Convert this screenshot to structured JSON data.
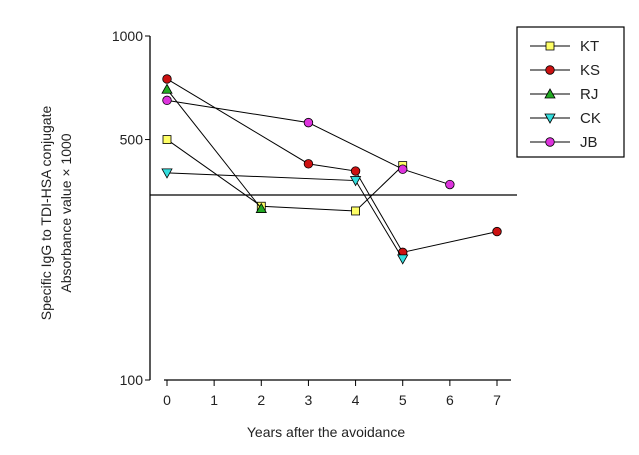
{
  "chart_data": {
    "type": "line",
    "title": "",
    "xlabel": "Years after the avoidance",
    "ylabel": "Specific IgG to TDI-HSA conjugate",
    "ylabel2": "Absorbance value × 1000",
    "yscale": "log",
    "ylim": [
      100,
      1000
    ],
    "xlim": [
      0,
      7
    ],
    "x_ticks": [
      0,
      1,
      2,
      3,
      4,
      5,
      6,
      7
    ],
    "x_tick_labels": [
      "0",
      "1",
      "2",
      "3",
      "4",
      "5",
      "6",
      "7"
    ],
    "y_ticks": [
      100,
      500,
      1000
    ],
    "y_tick_labels": [
      "100",
      "500",
      "1000"
    ],
    "reference_line": 345,
    "legend_position": "top-right",
    "series": [
      {
        "name": "KT",
        "marker": "square",
        "color": "#ffff66",
        "x": [
          0,
          2,
          4,
          5
        ],
        "y": [
          500,
          320,
          310,
          420
        ]
      },
      {
        "name": "KS",
        "marker": "circle",
        "color": "#cc1111",
        "x": [
          0,
          3,
          4,
          5,
          7
        ],
        "y": [
          750,
          425,
          405,
          235,
          270
        ]
      },
      {
        "name": "RJ",
        "marker": "triangle-up",
        "color": "#22aa22",
        "x": [
          0,
          2
        ],
        "y": [
          700,
          315
        ]
      },
      {
        "name": "CK",
        "marker": "triangle-down",
        "color": "#33dddd",
        "x": [
          0,
          4,
          5
        ],
        "y": [
          400,
          380,
          225
        ]
      },
      {
        "name": "JB",
        "marker": "circle",
        "color": "#dd33dd",
        "x": [
          0,
          3,
          5,
          6
        ],
        "y": [
          650,
          560,
          410,
          370
        ]
      }
    ]
  }
}
